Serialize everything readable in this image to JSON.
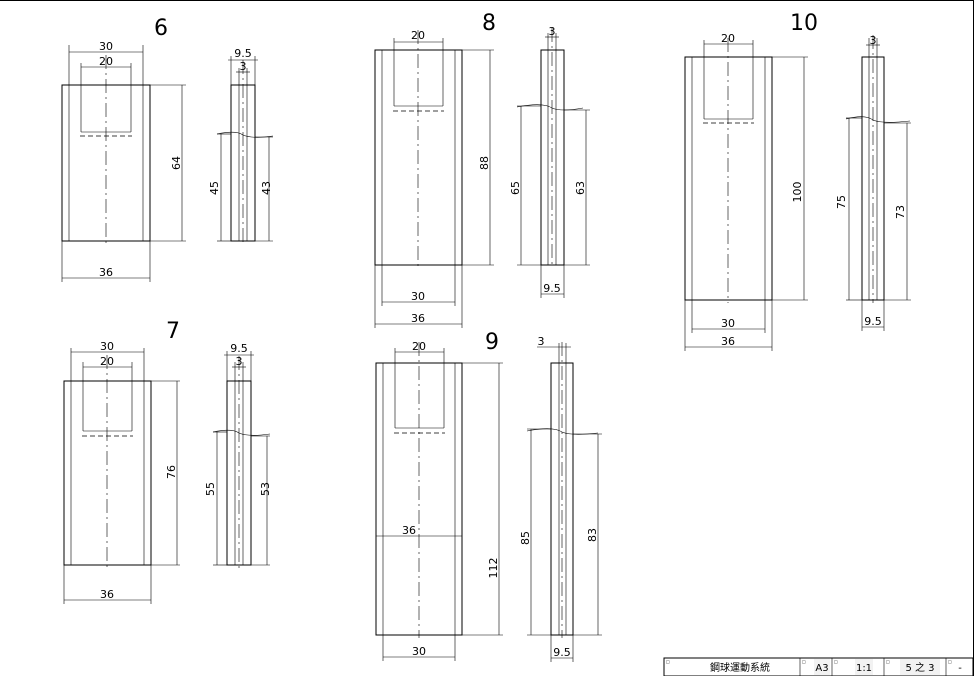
{
  "drawing": {
    "views": [
      {
        "number": "6",
        "front": {
          "top_width": "30",
          "slot_width": "20",
          "height": "64",
          "width": "36"
        },
        "side": {
          "thickness": "9.5",
          "slot": "3",
          "left_height": "45",
          "right_height": "43"
        }
      },
      {
        "number": "7",
        "front": {
          "top_width": "30",
          "slot_width": "20",
          "height": "76",
          "width": "36"
        },
        "side": {
          "thickness": "9.5",
          "slot": "3",
          "left_height": "55",
          "right_height": "53"
        }
      },
      {
        "number": "8",
        "front": {
          "slot_width": "20",
          "height": "88",
          "inner_width": "30",
          "width": "36"
        },
        "side": {
          "slot": "3",
          "left_height": "65",
          "right_height": "63",
          "thickness": "9.5"
        }
      },
      {
        "number": "9",
        "front": {
          "slot_width": "20",
          "mid_width": "36",
          "height": "112",
          "width": "30"
        },
        "side": {
          "slot": "3",
          "left_height": "85",
          "right_height": "83",
          "thickness": "9.5"
        }
      },
      {
        "number": "10",
        "front": {
          "slot_width": "20",
          "height": "100",
          "inner_width": "30",
          "width": "36"
        },
        "side": {
          "slot": "3",
          "left_height": "75",
          "right_height": "73",
          "thickness": "9.5"
        }
      }
    ]
  },
  "title_block": {
    "name": "鋼球運動系統",
    "size": "A3",
    "scale": "1:1",
    "sheet": "5 之 3",
    "revision": "-"
  }
}
